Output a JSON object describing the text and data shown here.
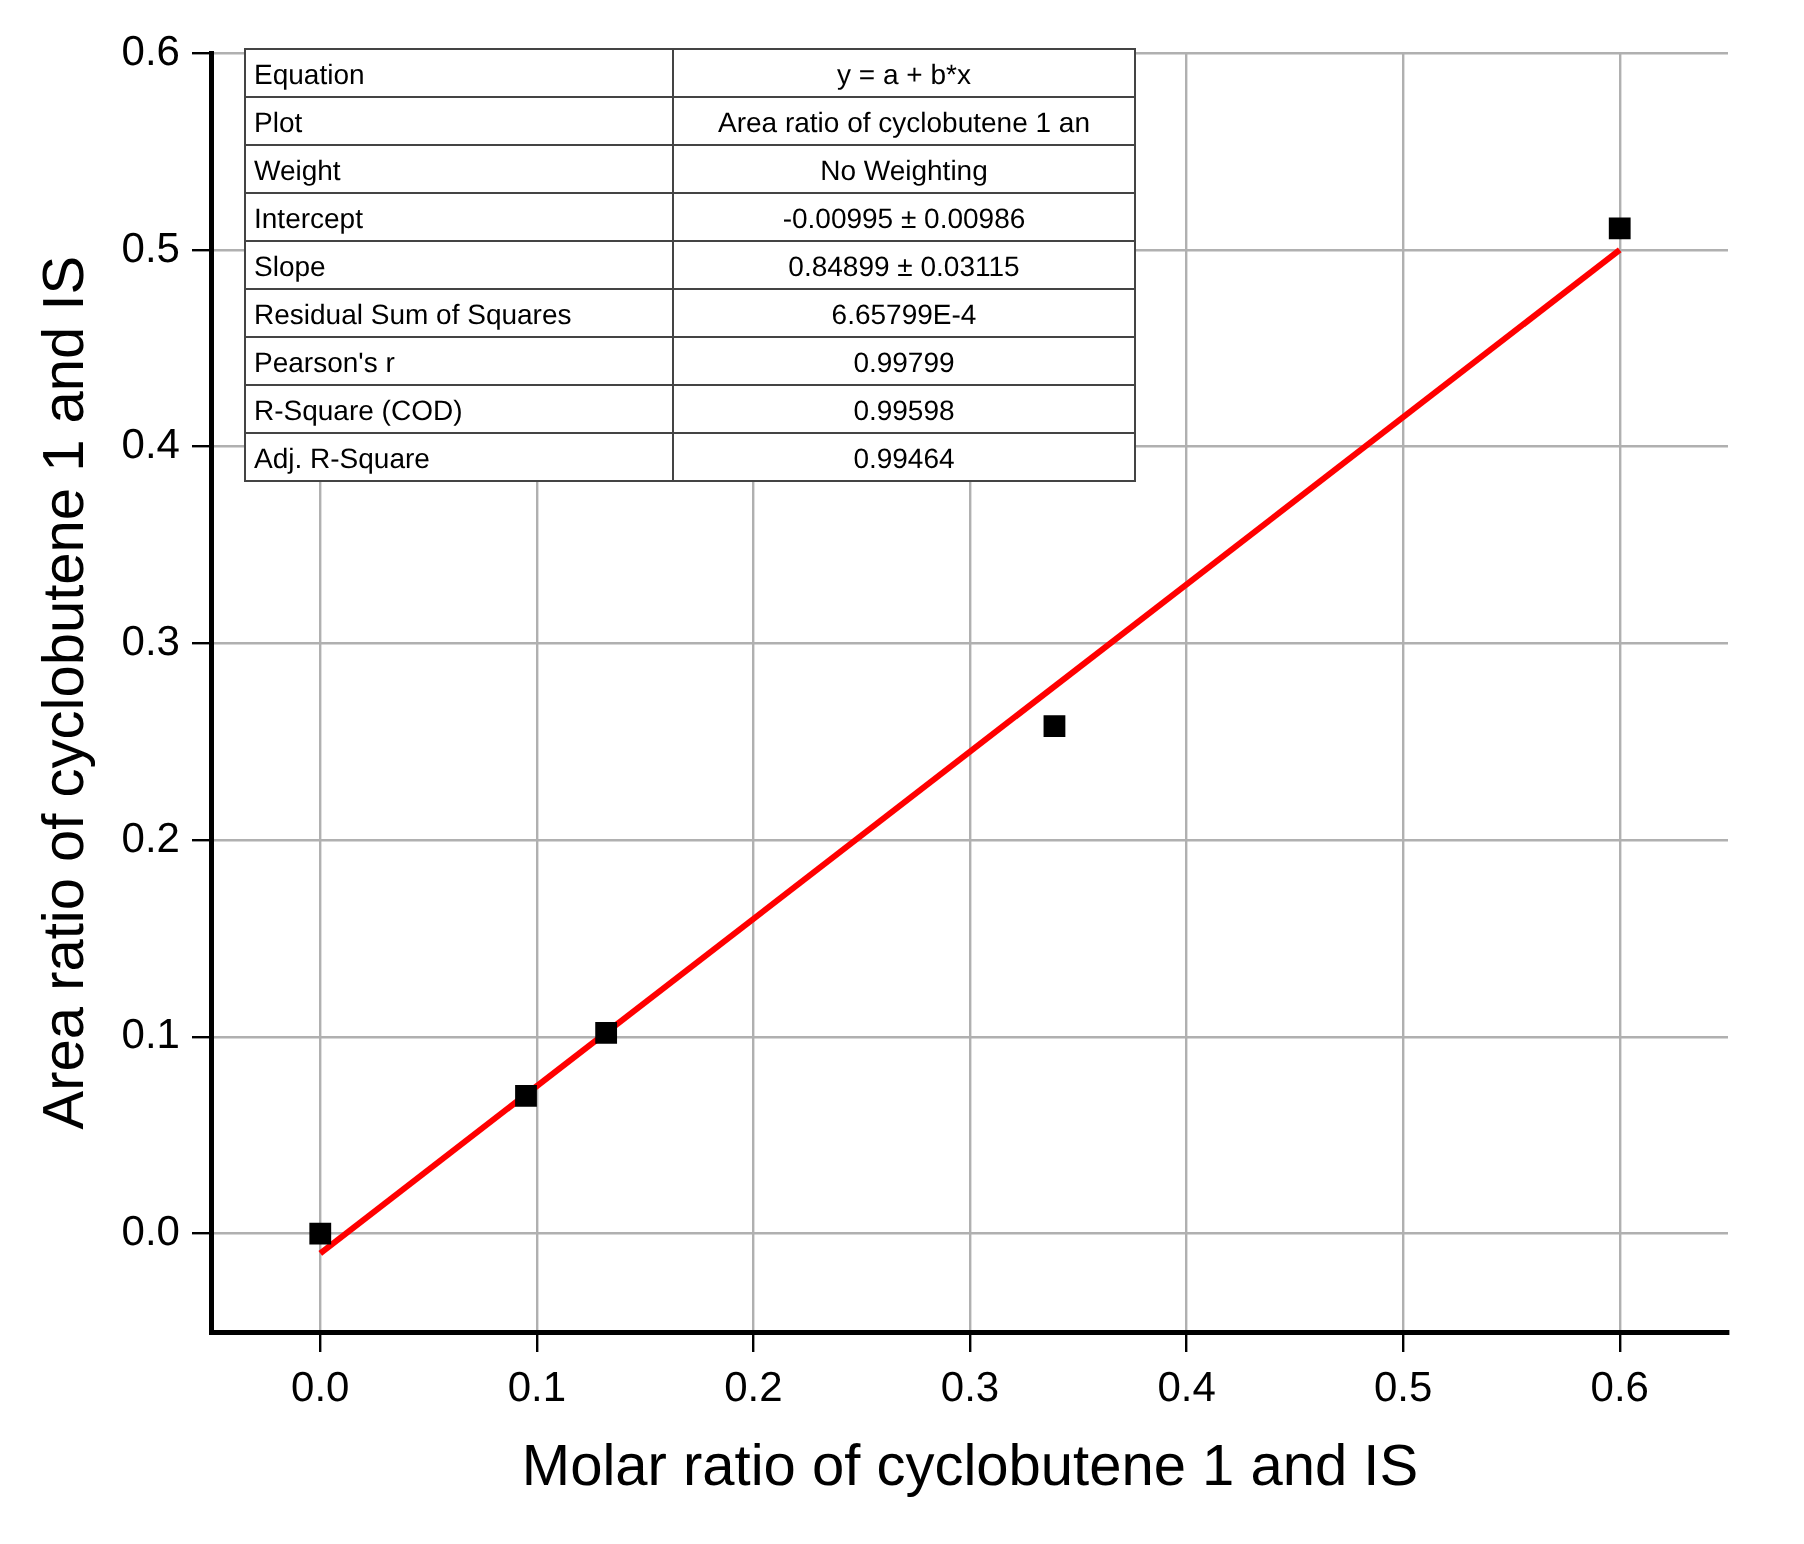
{
  "chart_data": {
    "type": "scatter",
    "xlabel": "Molar ratio of cyclobutene 1 and IS",
    "ylabel": "Area ratio of cyclobutene 1 and IS",
    "series": [
      {
        "color": "#000000",
        "marker": "square",
        "x": [
          0,
          0.095,
          0.132,
          0.339,
          0.6
        ],
        "values": [
          0,
          0.07,
          0.102,
          0.258,
          0.511
        ]
      },
      {
        "type": "line",
        "color": "#ff0000",
        "marker": "none",
        "line_style": "solid",
        "x": [
          0,
          0.6
        ],
        "values": [
          -0.01,
          0.5
        ]
      }
    ],
    "xlim": [
      -0.05,
      0.65
    ],
    "ylim": [
      -0.05,
      0.6
    ],
    "xticks": [
      {
        "value": 0,
        "label": "0.0"
      },
      0.1,
      0.2,
      0.3,
      0.4,
      0.5,
      0.6
    ],
    "yticks": [
      {
        "value": 0,
        "label": "0.0"
      },
      0.1,
      0.2,
      0.3,
      0.4,
      0.5,
      0.6
    ],
    "grid": true,
    "legend": false,
    "annotations": [
      "Equation",
      "y = a + b*x",
      "Plot",
      "Area ratio of cyclobutene 1 an",
      "Weight",
      "No Weighting",
      "Intercept",
      "-0.00995 ± 0.00986",
      "Slope",
      "0.84899 ± 0.03115",
      "Residual Sum of Squares",
      "6.65799E-4",
      "Pearson's r",
      "0.99799",
      "R-Square (COD)",
      "0.99598",
      "Adj. R-Square",
      "0.99464"
    ]
  }
}
